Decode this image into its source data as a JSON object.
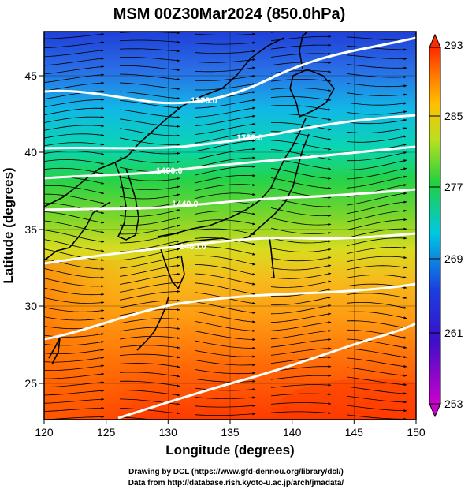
{
  "title": "MSM 00Z30Mar2024 (850.0hPa)",
  "x_axis": {
    "label": "Longitude (degrees)",
    "ticks": [
      "120",
      "125",
      "130",
      "135",
      "140",
      "145",
      "150"
    ],
    "range": [
      120,
      150
    ]
  },
  "y_axis": {
    "label": "Latitude  (degrees)",
    "ticks": [
      "25",
      "30",
      "35",
      "40",
      "45"
    ],
    "range": [
      22.4,
      47.6
    ]
  },
  "colorbar": {
    "ticks": [
      "293",
      "285",
      "277",
      "269",
      "261",
      "253"
    ],
    "min": 253,
    "max": 293,
    "colors": [
      "#cc00cc",
      "#1a2fd6",
      "#00c8e0",
      "#2ed24a",
      "#b8e020",
      "#ff9000",
      "#ff2a00"
    ]
  },
  "contour_labels": [
    "1320.0",
    "1360.0",
    "1400.0",
    "1440.0",
    "1480.0"
  ],
  "credits": [
    "Drawing by DCL (https://www.gfd-dennou.org/library/dcl/)",
    "Data from http://database.rish.kyoto-u.ac.jp/arch/jmadata/"
  ],
  "colors": {
    "contour": "#ffffff",
    "streamline": "#000000",
    "coastline": "#000000"
  }
}
